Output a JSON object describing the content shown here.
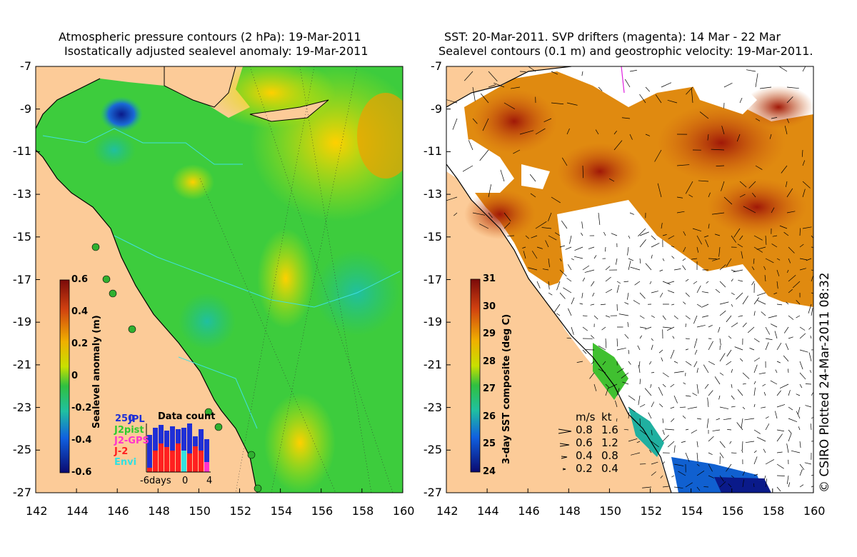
{
  "left_panel": {
    "title_line1": "Atmospheric pressure contours (2 hPa): 19-Mar-2011",
    "title_line2": "Isostatically adjusted sealevel anomaly: 19-Mar-2011",
    "y_ticks": [
      "-7",
      "-9",
      "-11",
      "-13",
      "-15",
      "-17",
      "-19",
      "-21",
      "-23",
      "-25",
      "-27"
    ],
    "x_ticks": [
      "142",
      "144",
      "146",
      "148",
      "150",
      "152",
      "154",
      "156",
      "158",
      "160"
    ],
    "colorbar": {
      "label": "Sealevel anomaly (m)",
      "ticks": [
        "0.6",
        "0.4",
        "0.2",
        "0",
        "-0.2",
        "-0.4",
        "-0.6"
      ]
    },
    "data_count": {
      "title": "Data count",
      "max_label": "250",
      "legend": [
        {
          "name": "JPL",
          "color": "#1f2fd6"
        },
        {
          "name": "J2pist",
          "color": "#2ecc2e"
        },
        {
          "name": "J2-GPS",
          "color": "#ff33cc"
        },
        {
          "name": "J-2",
          "color": "#ff2020"
        },
        {
          "name": "Envi",
          "color": "#33e0e0"
        }
      ],
      "x_labels": [
        "-6days",
        "0",
        "4"
      ]
    }
  },
  "right_panel": {
    "title_line1": "SST: 20-Mar-2011. SVP drifters (magenta): 14 Mar - 22 Mar",
    "title_line2": "Sealevel contours (0.1 m) and geostrophic velocity: 19-Mar-2011.",
    "y_ticks": [
      "-7",
      "-9",
      "-11",
      "-13",
      "-15",
      "-17",
      "-19",
      "-21",
      "-23",
      "-25",
      "-27"
    ],
    "x_ticks": [
      "142",
      "144",
      "146",
      "148",
      "150",
      "152",
      "154",
      "156",
      "158",
      "160"
    ],
    "colorbar": {
      "label": "3-day SST composite (deg C)",
      "ticks": [
        "31",
        "30",
        "29",
        "28",
        "27",
        "26",
        "25",
        "24"
      ]
    },
    "velocity_legend": {
      "header_ms": "m/s",
      "header_kt": "kt",
      "rows": [
        {
          "ms": "0.8",
          "kt": "1.6"
        },
        {
          "ms": "0.6",
          "kt": "1.2"
        },
        {
          "ms": "0.4",
          "kt": "0.8"
        },
        {
          "ms": "0.2",
          "kt": "0.4"
        }
      ]
    }
  },
  "credit": "© CSIRO Plotted 24-Mar-2011 08:32",
  "colors": {
    "land": "#fccb98",
    "coast": "#000000",
    "bathy": "#40e0e0"
  }
}
